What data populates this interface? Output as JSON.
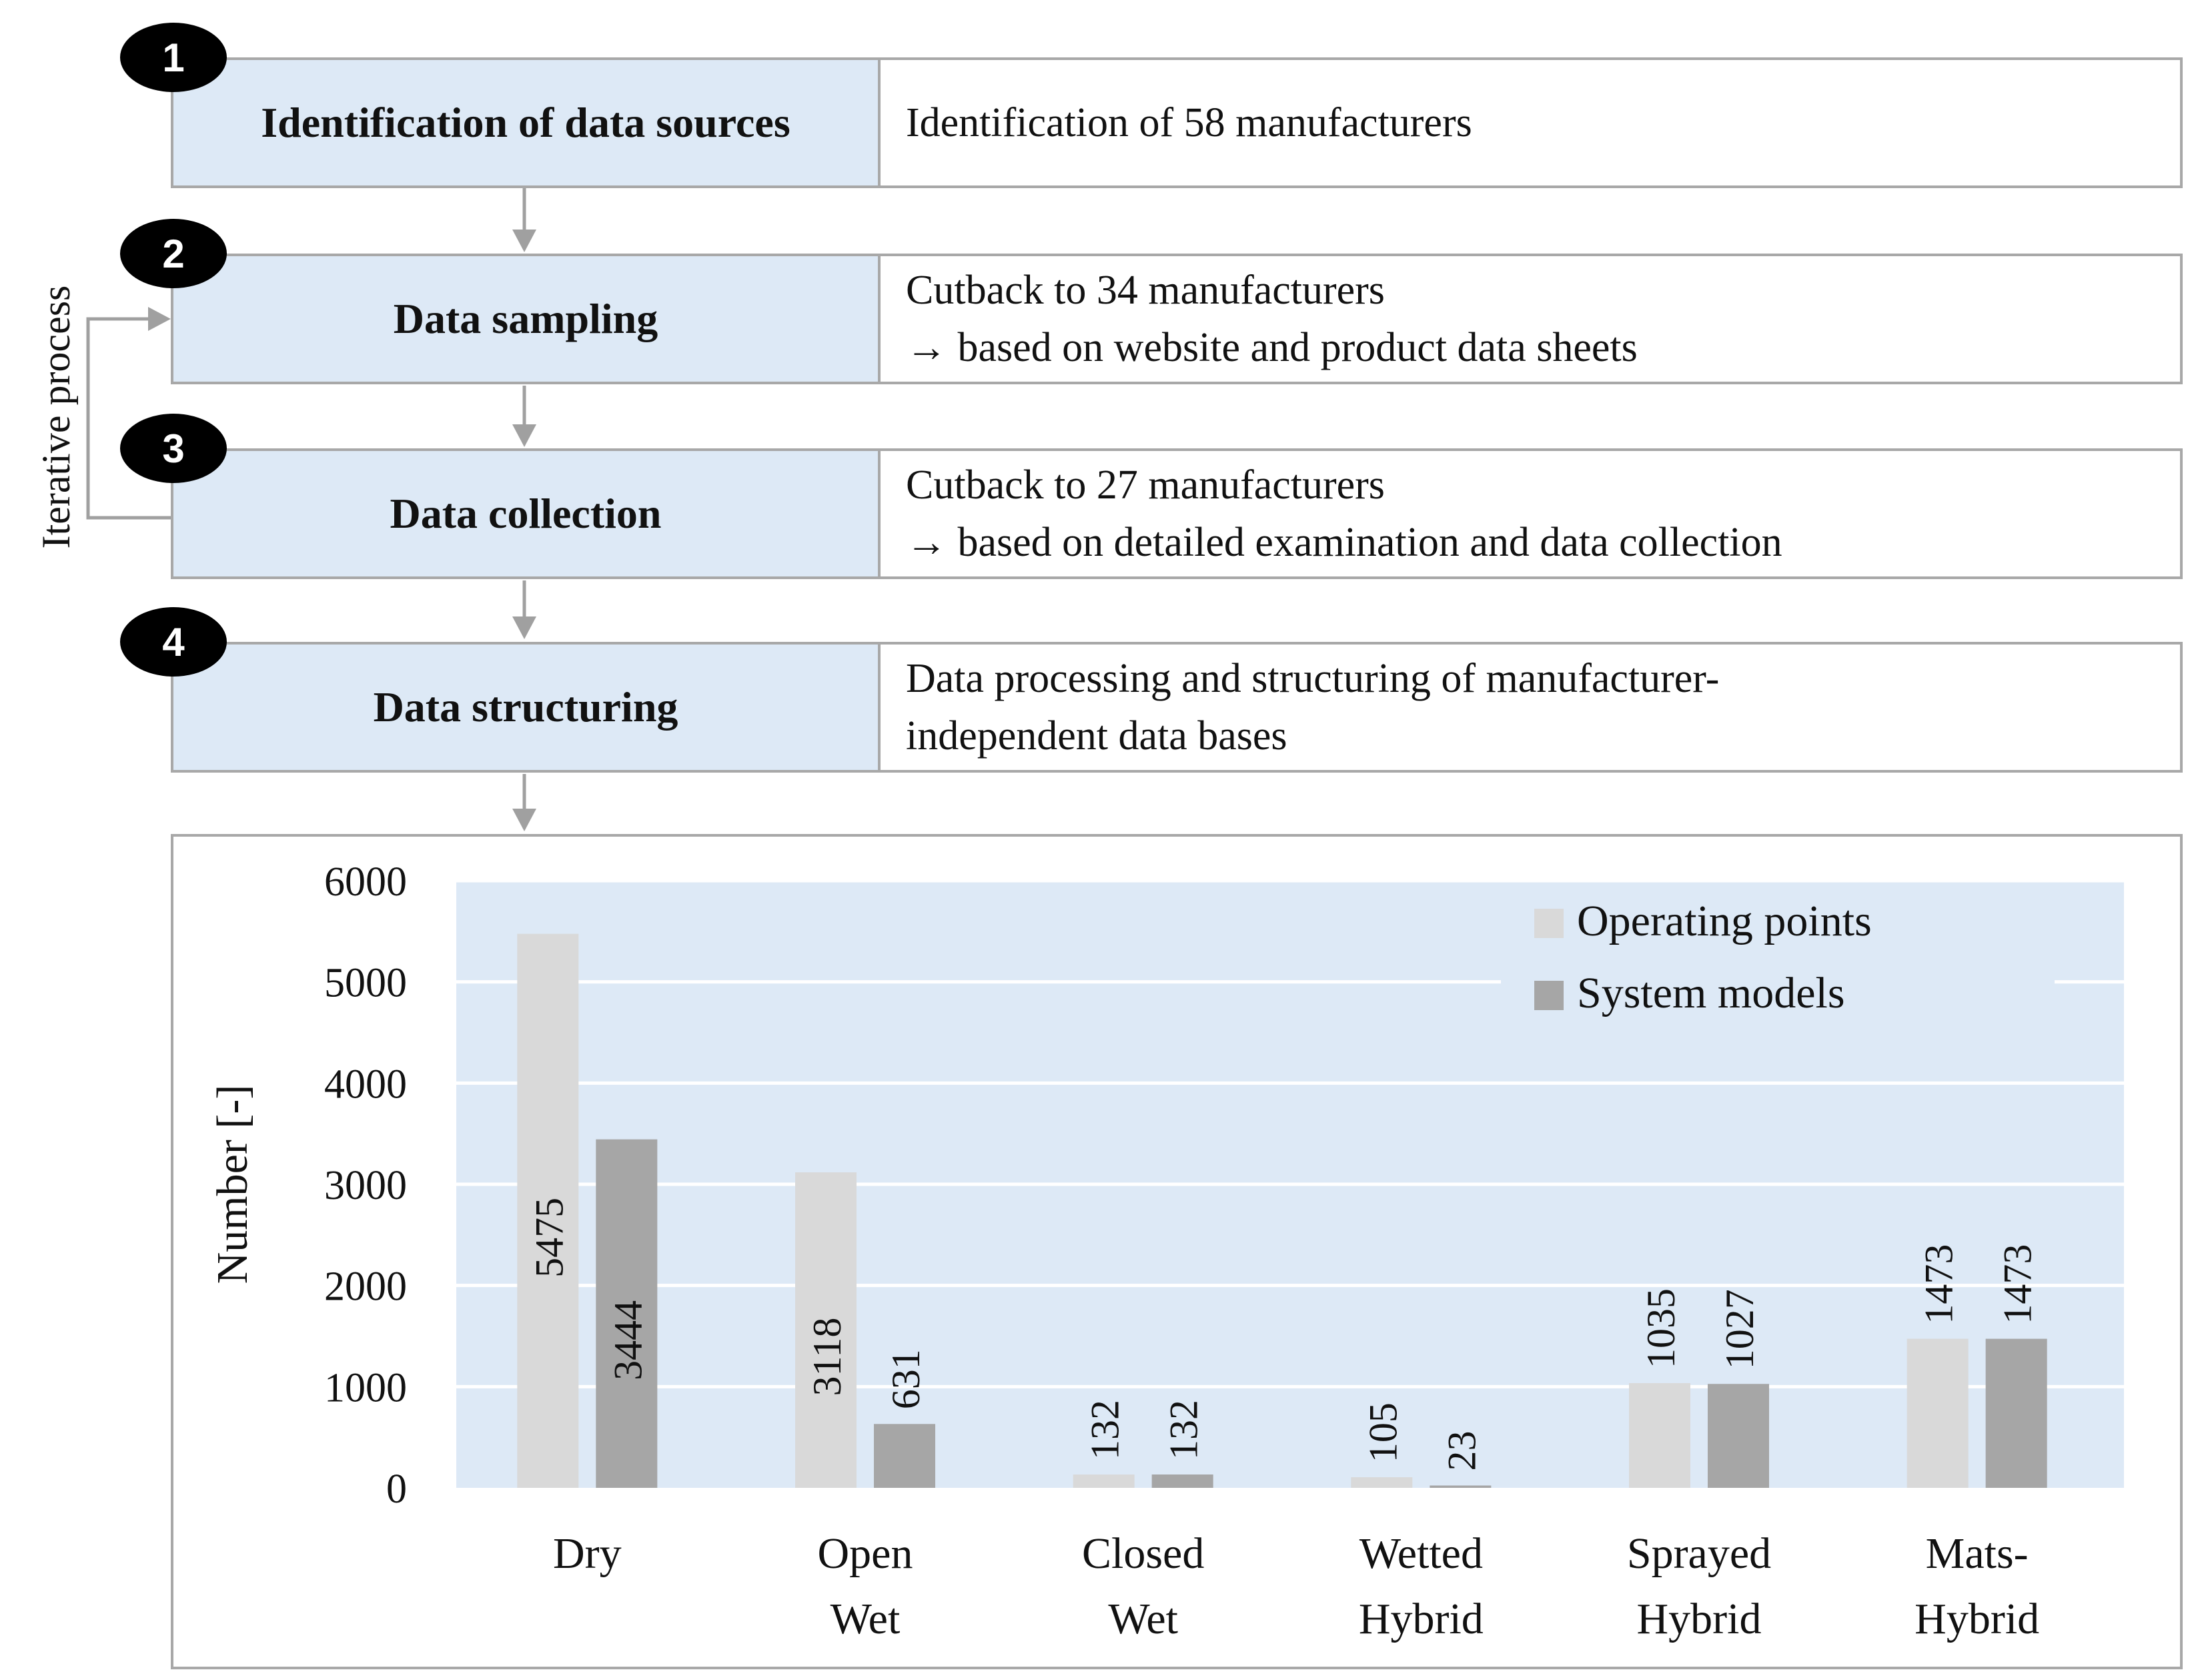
{
  "process": {
    "iterative_label": "Iterative process",
    "steps": [
      {
        "number": "1",
        "title": "Identification of data sources",
        "lines": [
          "Identification of 58 manufacturers"
        ]
      },
      {
        "number": "2",
        "title": "Data sampling",
        "lines": [
          "Cutback to 34 manufacturers",
          "→ based on website and product data sheets"
        ]
      },
      {
        "number": "3",
        "title": "Data collection",
        "lines": [
          "Cutback to 27 manufacturers",
          "→ based on detailed examination and data collection"
        ]
      },
      {
        "number": "4",
        "title": "Data structuring",
        "lines": [
          "Data processing and structuring of manufacturer-",
          "independent data bases"
        ]
      }
    ]
  },
  "chart_data": {
    "type": "bar",
    "ylabel": "Number [-]",
    "ylim": [
      0,
      6000
    ],
    "yticks": [
      "0",
      "1000",
      "2000",
      "3000",
      "4000",
      "5000",
      "6000"
    ],
    "categories": [
      {
        "line1": "Dry",
        "line2": ""
      },
      {
        "line1": "Open",
        "line2": "Wet"
      },
      {
        "line1": "Closed",
        "line2": "Wet"
      },
      {
        "line1": "Wetted",
        "line2": "Hybrid"
      },
      {
        "line1": "Sprayed",
        "line2": "Hybrid"
      },
      {
        "line1": "Mats-",
        "line2": "Hybrid"
      }
    ],
    "series": [
      {
        "name": "Operating points",
        "color": "#d9d9d9",
        "values": [
          5475,
          3118,
          132,
          105,
          1035,
          1473
        ]
      },
      {
        "name": "System models",
        "color": "#a6a6a6",
        "values": [
          3444,
          631,
          132,
          23,
          1027,
          1473
        ]
      }
    ],
    "plot_background": "#dde9f6",
    "legend_position": "top-right",
    "grid": true
  }
}
